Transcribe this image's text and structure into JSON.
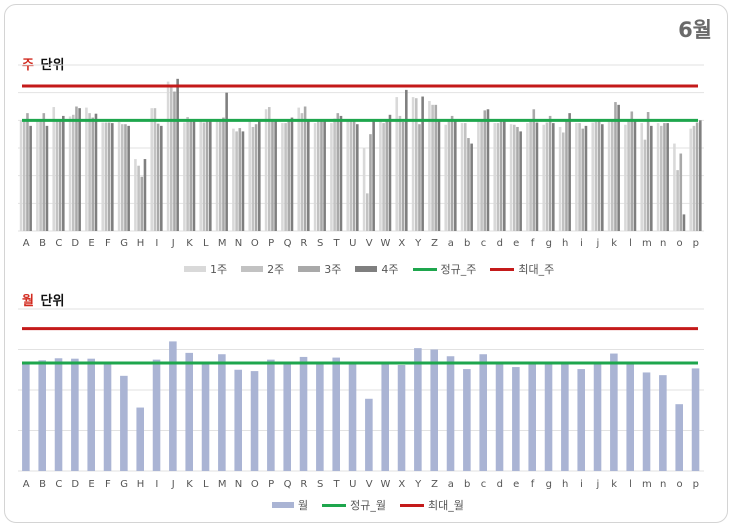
{
  "month_title": "6월",
  "chart_data": [
    {
      "type": "bar",
      "title_prefix": "주",
      "title_rest": " 단위",
      "categories": [
        "A",
        "B",
        "C",
        "D",
        "E",
        "F",
        "G",
        "H",
        "I",
        "J",
        "K",
        "L",
        "M",
        "N",
        "O",
        "P",
        "Q",
        "R",
        "S",
        "T",
        "U",
        "V",
        "W",
        "X",
        "Y",
        "Z",
        "a",
        "b",
        "c",
        "d",
        "e",
        "f",
        "g",
        "h",
        "i",
        "j",
        "k",
        "l",
        "m",
        "n",
        "o",
        "p"
      ],
      "series": [
        {
          "name": "1주",
          "color": "#d9d9d9",
          "values": [
            200,
            198,
            224,
            207,
            223,
            196,
            197,
            130,
            222,
            270,
            196,
            198,
            200,
            185,
            200,
            220,
            195,
            223,
            195,
            195,
            198,
            150,
            200,
            242,
            242,
            235,
            192,
            195,
            200,
            195,
            193,
            195,
            192,
            188,
            195,
            196,
            198,
            192,
            195,
            195,
            158,
            185
          ]
        },
        {
          "name": "2주",
          "color": "#c2c2c2",
          "values": [
            200,
            200,
            200,
            210,
            213,
            196,
            193,
            118,
            222,
            260,
            206,
            196,
            200,
            180,
            188,
            224,
            195,
            213,
            198,
            203,
            198,
            68,
            195,
            208,
            240,
            228,
            198,
            195,
            202,
            195,
            192,
            200,
            196,
            178,
            195,
            197,
            200,
            200,
            165,
            190,
            110,
            190
          ]
        },
        {
          "name": "3주",
          "color": "#a9a9a9",
          "values": [
            213,
            213,
            198,
            225,
            205,
            196,
            193,
            98,
            194,
            252,
            198,
            200,
            205,
            186,
            193,
            200,
            200,
            225,
            200,
            213,
            200,
            175,
            200,
            197,
            193,
            228,
            208,
            168,
            218,
            200,
            188,
            220,
            208,
            200,
            185,
            200,
            233,
            216,
            215,
            195,
            140,
            196
          ]
        },
        {
          "name": "4주",
          "color": "#7f7f7f",
          "values": [
            190,
            190,
            208,
            222,
            212,
            195,
            190,
            130,
            190,
            275,
            198,
            200,
            250,
            180,
            198,
            200,
            205,
            200,
            200,
            208,
            193,
            200,
            210,
            255,
            243,
            200,
            198,
            158,
            220,
            198,
            180,
            196,
            195,
            213,
            190,
            193,
            228,
            200,
            190,
            195,
            30,
            200
          ]
        }
      ],
      "ylim": [
        0,
        300
      ],
      "reference_lines": [
        {
          "name": "정규_주",
          "value": 200,
          "color": "#1ea64d"
        },
        {
          "name": "최대_주",
          "value": 262,
          "color": "#c41a1a"
        }
      ]
    },
    {
      "type": "bar",
      "title_prefix": "월",
      "title_rest": " 단위",
      "categories": [
        "A",
        "B",
        "C",
        "D",
        "E",
        "F",
        "G",
        "H",
        "I",
        "J",
        "K",
        "L",
        "M",
        "N",
        "O",
        "P",
        "Q",
        "R",
        "S",
        "T",
        "U",
        "V",
        "W",
        "X",
        "Y",
        "Z",
        "a",
        "b",
        "c",
        "d",
        "e",
        "f",
        "g",
        "h",
        "i",
        "j",
        "k",
        "l",
        "m",
        "n",
        "o",
        "p"
      ],
      "series": [
        {
          "name": "월",
          "color": "#aab4d4",
          "values": [
            810,
            820,
            835,
            832,
            832,
            805,
            705,
            470,
            825,
            960,
            875,
            805,
            865,
            750,
            740,
            825,
            805,
            845,
            810,
            840,
            805,
            535,
            805,
            785,
            910,
            900,
            850,
            755,
            865,
            805,
            770,
            805,
            805,
            805,
            755,
            805,
            870,
            805,
            730,
            710,
            495,
            760
          ]
        }
      ],
      "ylim": [
        0,
        1200
      ],
      "reference_lines": [
        {
          "name": "정규_월",
          "value": 800,
          "color": "#1ea64d"
        },
        {
          "name": "최대_월",
          "value": 1055,
          "color": "#c41a1a"
        }
      ]
    }
  ]
}
